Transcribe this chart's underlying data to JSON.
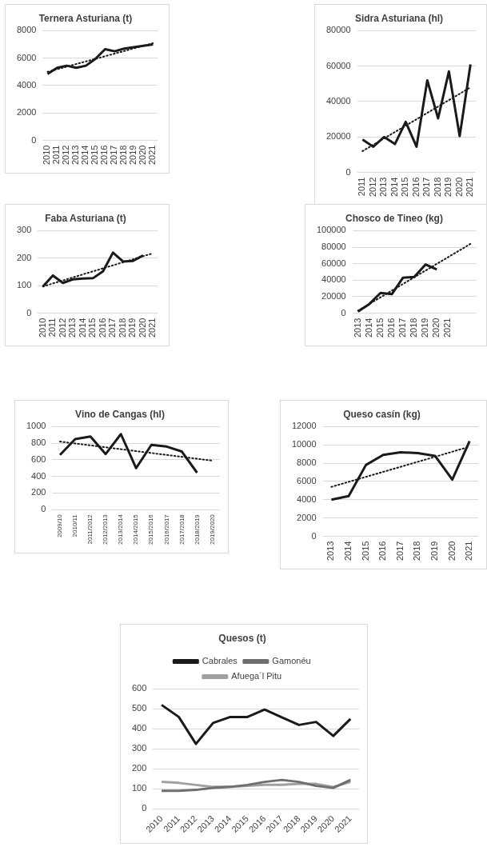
{
  "chart_data": [
    {
      "type": "line",
      "title": "Ternera Asturiana (t)",
      "categories": [
        "2010",
        "2011",
        "2012",
        "2013",
        "2014",
        "2015",
        "2016",
        "2017",
        "2018",
        "2019",
        "2020",
        "2021"
      ],
      "series": [
        {
          "color": "#1a1a1a",
          "values": [
            4850,
            5300,
            5450,
            5300,
            5450,
            5950,
            6650,
            6500,
            6700,
            6800,
            6900,
            7000
          ]
        },
        {
          "type": "line",
          "color": "#1a1a1a",
          "line_style": "dotted",
          "values": [
            5000,
            5190,
            5380,
            5570,
            5760,
            5950,
            6140,
            6330,
            6520,
            6710,
            6900,
            7090
          ]
        }
      ],
      "ylim": [
        0,
        8000
      ],
      "yticks": [
        0,
        2000,
        4000,
        6000,
        8000
      ],
      "grid": "y",
      "legend": false,
      "marker": "none"
    },
    {
      "type": "line",
      "title": "Sidra Asturiana (hl)",
      "categories": [
        "2011",
        "2012",
        "2013",
        "2014",
        "2015",
        "2016",
        "2017",
        "2018",
        "2019",
        "2020",
        "2021"
      ],
      "series": [
        {
          "color": "#1a1a1a",
          "values": [
            18500,
            14500,
            20000,
            16000,
            28500,
            14500,
            52000,
            30500,
            57000,
            20500,
            61000
          ]
        },
        {
          "type": "line",
          "color": "#1a1a1a",
          "line_style": "dotted",
          "values": [
            12000,
            15600,
            19200,
            22800,
            26400,
            30000,
            33600,
            37200,
            40800,
            44400,
            48000
          ]
        }
      ],
      "ylim": [
        0,
        80000
      ],
      "yticks": [
        0,
        20000,
        40000,
        60000,
        80000
      ],
      "grid": "y",
      "legend": false,
      "marker": "none"
    },
    {
      "type": "line",
      "title": "Faba Asturiana (t)",
      "categories": [
        "2010",
        "2011",
        "2012",
        "2013",
        "2014",
        "2015",
        "2016",
        "2017",
        "2018",
        "2019",
        "2020",
        "2021"
      ],
      "series": [
        {
          "color": "#1a1a1a",
          "values": [
            97,
            137,
            110,
            123,
            126,
            127,
            152,
            220,
            188,
            190,
            210,
            null
          ]
        },
        {
          "type": "line",
          "color": "#1a1a1a",
          "line_style": "dotted",
          "values": [
            97,
            108,
            119,
            130,
            141,
            152,
            163,
            174,
            185,
            196,
            207,
            218
          ]
        }
      ],
      "ylim": [
        0,
        300
      ],
      "yticks": [
        0,
        100,
        200,
        300
      ],
      "grid": "y",
      "legend": false,
      "marker": "none"
    },
    {
      "type": "line",
      "title": "Chosco de Tineo (kg)",
      "categories": [
        "2013",
        "2014",
        "2015",
        "2016",
        "2017",
        "2018",
        "2019",
        "2020",
        "2021",
        null,
        null
      ],
      "series": [
        {
          "color": "#1a1a1a",
          "values": [
            2000,
            11000,
            24500,
            23000,
            43000,
            44000,
            59000,
            53000,
            null,
            null,
            null
          ]
        },
        {
          "type": "line",
          "color": "#1a1a1a",
          "line_style": "dotted",
          "values": [
            3000,
            11100,
            19200,
            27300,
            35400,
            43500,
            51600,
            59700,
            67800,
            75900,
            84000
          ]
        }
      ],
      "ylim": [
        0,
        100000
      ],
      "yticks": [
        0,
        20000,
        40000,
        60000,
        80000,
        100000
      ],
      "grid": "y",
      "legend": false,
      "marker": "none"
    },
    {
      "type": "line",
      "title": "Vino de Cangas (hl)",
      "categories": [
        "2009/10",
        "2010/11",
        "2011/2012",
        "2012/2013",
        "2013/2014",
        "2014/2015",
        "2015/2016",
        "2016/2017",
        "2017/2018",
        "2018/2019",
        "2019/2020"
      ],
      "series": [
        {
          "color": "#1a1a1a",
          "values": [
            660,
            850,
            880,
            670,
            910,
            500,
            780,
            760,
            700,
            445,
            null
          ]
        },
        {
          "type": "line",
          "color": "#1a1a1a",
          "line_style": "dotted",
          "values": [
            820,
            797,
            774,
            751,
            728,
            705,
            682,
            659,
            636,
            613,
            590
          ]
        }
      ],
      "ylim": [
        0,
        1000
      ],
      "yticks": [
        0,
        200,
        400,
        600,
        800,
        1000
      ],
      "grid": "y",
      "legend": false,
      "marker": "none"
    },
    {
      "type": "line",
      "title": "Queso casín (kg)",
      "categories": [
        "2013",
        "2014",
        "2015",
        "2016",
        "2017",
        "2018",
        "2019",
        "2020",
        "2021"
      ],
      "series": [
        {
          "color": "#1a1a1a",
          "values": [
            4000,
            4400,
            7800,
            8900,
            9200,
            9100,
            8800,
            6200,
            10400
          ]
        },
        {
          "type": "line",
          "color": "#1a1a1a",
          "line_style": "dotted",
          "values": [
            5400,
            5950,
            6500,
            7050,
            7600,
            8150,
            8700,
            9250,
            9800
          ]
        }
      ],
      "ylim": [
        0,
        12000
      ],
      "yticks": [
        0,
        2000,
        4000,
        6000,
        8000,
        10000,
        12000
      ],
      "grid": "y",
      "legend": false,
      "marker": "none"
    },
    {
      "type": "line",
      "title": "Quesos (t)",
      "categories": [
        "2010",
        "2011",
        "2012",
        "2013",
        "2014",
        "2015",
        "2016",
        "2017",
        "2018",
        "2019",
        "2020",
        "2021"
      ],
      "series": [
        {
          "name": "Cabrales",
          "color": "#1a1a1a",
          "values": [
            520,
            460,
            325,
            430,
            460,
            460,
            497,
            458,
            420,
            435,
            365,
            450
          ]
        },
        {
          "name": "Gamonéu",
          "color": "#6e6e6e",
          "values": [
            90,
            90,
            95,
            105,
            110,
            120,
            135,
            145,
            135,
            115,
            105,
            145
          ]
        },
        {
          "name": "Afuega´l Pitu",
          "color": "#a0a0a0",
          "values": [
            135,
            130,
            120,
            110,
            110,
            115,
            120,
            120,
            125,
            125,
            110,
            135
          ]
        }
      ],
      "ylim": [
        0,
        600
      ],
      "yticks": [
        0,
        100,
        200,
        300,
        400,
        500,
        600
      ],
      "grid": "y",
      "legend": "top",
      "marker": "none"
    }
  ]
}
